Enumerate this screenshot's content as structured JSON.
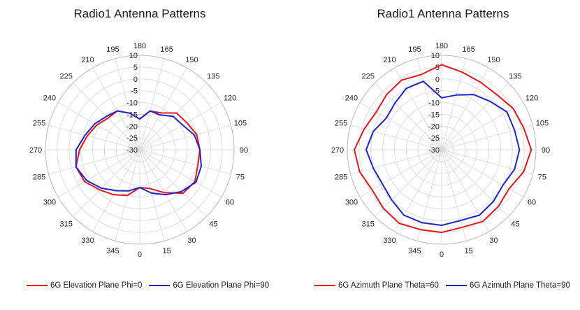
{
  "chart_data": [
    {
      "type": "polar-line",
      "title": "Radio1 Antenna Patterns",
      "radial_ticks": [
        10,
        5,
        0,
        -5,
        -10,
        -15,
        -20,
        -25,
        -30
      ],
      "rlim": [
        -30,
        10
      ],
      "angle_ticks": [
        0,
        15,
        30,
        45,
        60,
        75,
        90,
        105,
        120,
        135,
        150,
        165,
        180,
        195,
        210,
        225,
        240,
        255,
        270,
        285,
        300,
        315,
        330,
        345
      ],
      "angle_zero": "bottom",
      "angle_direction": "counterclockwise",
      "grid": true,
      "legend_position": "bottom",
      "theta": [
        0,
        15,
        30,
        45,
        60,
        75,
        90,
        105,
        120,
        135,
        150,
        165,
        180,
        195,
        210,
        225,
        240,
        255,
        270,
        285,
        300,
        315,
        330,
        345
      ],
      "series": [
        {
          "name": "6G Elevation Plane Phi=0",
          "color": "#e3161b",
          "values": [
            -14,
            -13,
            -9,
            -4,
            -3,
            -4.5,
            -4.5,
            -5,
            -7,
            -8,
            -12,
            -13,
            -17,
            -14,
            -11,
            -11,
            -9,
            -7,
            -4.5,
            -2,
            -3,
            -6,
            -8,
            -10
          ]
        },
        {
          "name": "6G Elevation Plane Phi=90",
          "color": "#1c24c8",
          "values": [
            -14,
            -11,
            -8,
            -5,
            -2.5,
            -3,
            -4.5,
            -6,
            -9,
            -10,
            -13,
            -13,
            -17,
            -14,
            -11,
            -10,
            -8,
            -6,
            -3,
            -2,
            -4,
            -7,
            -10,
            -12
          ]
        }
      ]
    },
    {
      "type": "polar-line",
      "title": "Radio1 Antenna Patterns",
      "radial_ticks": [
        10,
        5,
        0,
        -5,
        -10,
        -15,
        -20,
        -25,
        -30
      ],
      "rlim": [
        -30,
        10
      ],
      "angle_ticks": [
        0,
        15,
        30,
        45,
        60,
        75,
        90,
        105,
        120,
        135,
        150,
        165,
        180,
        195,
        210,
        225,
        240,
        255,
        270,
        285,
        300,
        315,
        330,
        345
      ],
      "angle_zero": "bottom",
      "angle_direction": "counterclockwise",
      "grid": true,
      "legend_position": "bottom",
      "theta": [
        0,
        15,
        30,
        45,
        60,
        75,
        90,
        105,
        120,
        135,
        150,
        165,
        180,
        195,
        210,
        225,
        240,
        255,
        270,
        285,
        300,
        315,
        330,
        345
      ],
      "series": [
        {
          "name": "6G Azimuth Plane Theta=60",
          "color": "#e3161b",
          "values": [
            5,
            4,
            5,
            4,
            3,
            6,
            8,
            6,
            5,
            3,
            3,
            4,
            6,
            3,
            4,
            3,
            2,
            4,
            7,
            6,
            4,
            5,
            6,
            5
          ]
        },
        {
          "name": "6G Azimuth Plane Theta=90",
          "color": "#1c24c8",
          "values": [
            2,
            1,
            2,
            1,
            0,
            2,
            3,
            2,
            2,
            -1,
            -3,
            -6,
            -8,
            0,
            0,
            -2,
            -3,
            0,
            2,
            0,
            -1,
            0,
            2,
            2
          ]
        }
      ]
    }
  ]
}
